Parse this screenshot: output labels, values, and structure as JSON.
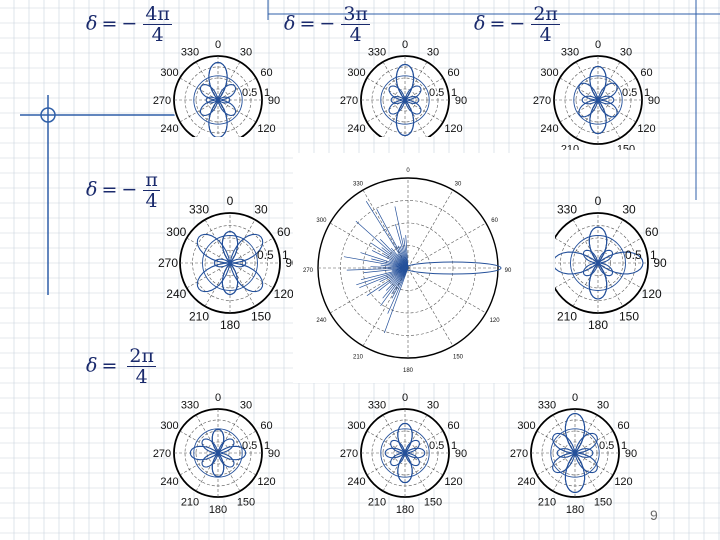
{
  "slide": {
    "page_number": "9",
    "colors": {
      "grid": "#c9d2de",
      "accent": "#2f5fa8",
      "curve": "#24509a",
      "axis": "#000000"
    },
    "row_labels": [
      {
        "delta": "δ",
        "eq": "=",
        "sign": "−",
        "num": "4π",
        "den": "4"
      },
      {
        "delta": "δ",
        "eq": "=",
        "sign": "−",
        "num": "3π",
        "den": "4"
      },
      {
        "delta": "δ",
        "eq": "=",
        "sign": "−",
        "num": "2π",
        "den": "4"
      },
      {
        "delta": "δ",
        "eq": "=",
        "sign": "−",
        "num": "π",
        "den": "4"
      },
      {
        "delta": "δ",
        "eq": "=",
        "sign": "",
        "num": "2π",
        "den": "4"
      }
    ]
  },
  "chart_data": [
    {
      "type": "polar",
      "curve_type": "lobes",
      "angle_ticks": [
        "0",
        "30",
        "60",
        "90",
        "120",
        "150",
        "180",
        "210",
        "240",
        "270",
        "300",
        "330"
      ],
      "radius_ticks": [
        "0.5",
        "1"
      ],
      "rlim": [
        0,
        1
      ],
      "series": [
        {
          "values": [
            0.95,
            0.55,
            0.3,
            0.55,
            0.95
          ]
        }
      ]
    },
    {
      "type": "polar",
      "curve_type": "lobes",
      "angle_ticks": [
        "0",
        "30",
        "60",
        "90",
        "120",
        "150",
        "180",
        "210",
        "240",
        "270",
        "300",
        "330"
      ],
      "radius_ticks": [
        "0.5",
        "1"
      ],
      "rlim": [
        0,
        1
      ],
      "series": [
        {
          "values": [
            0.9,
            0.5,
            0.35,
            0.5,
            0.9
          ]
        }
      ]
    },
    {
      "type": "polar",
      "curve_type": "lobes",
      "angle_ticks": [
        "0",
        "30",
        "60",
        "90",
        "120",
        "150",
        "180",
        "210",
        "240",
        "270",
        "300",
        "330"
      ],
      "radius_ticks": [
        "0.5",
        "1"
      ],
      "rlim": [
        0,
        1
      ],
      "series": [
        {
          "values": [
            0.85,
            0.6,
            0.4,
            0.6,
            0.85
          ]
        }
      ]
    },
    {
      "type": "polar",
      "curve_type": "lobes",
      "angle_ticks": [
        "0",
        "30",
        "60",
        "90",
        "120",
        "150",
        "180",
        "210",
        "240",
        "270",
        "300",
        "330"
      ],
      "radius_ticks": [
        "0.5",
        "1"
      ],
      "rlim": [
        0,
        1
      ],
      "series": [
        {
          "values": [
            0.7,
            0.9,
            0.35,
            0.9,
            0.7
          ]
        }
      ]
    },
    {
      "type": "polar",
      "curve_type": "lobes",
      "angle_ticks": [
        "0",
        "30",
        "60",
        "90",
        "120",
        "150",
        "180",
        "210",
        "240",
        "270",
        "300",
        "330"
      ],
      "radius_ticks": [
        "0.5",
        "1"
      ],
      "rlim": [
        0,
        1
      ],
      "series": [
        {
          "values": [
            0.8,
            0.4,
            1.0,
            0.4,
            0.8
          ]
        }
      ]
    },
    {
      "type": "polar",
      "curve_type": "lobes",
      "angle_ticks": [
        "0",
        "30",
        "60",
        "90",
        "120",
        "150",
        "180",
        "210",
        "240",
        "270",
        "300",
        "330"
      ],
      "radius_ticks": [
        "0.5",
        "1"
      ],
      "rlim": [
        0,
        1
      ],
      "series": [
        {
          "values": [
            0.6,
            0.5,
            0.7,
            0.5,
            0.6
          ]
        }
      ]
    },
    {
      "type": "polar",
      "curve_type": "lobes",
      "angle_ticks": [
        "0",
        "30",
        "60",
        "90",
        "120",
        "150",
        "180",
        "210",
        "240",
        "270",
        "300",
        "330"
      ],
      "radius_ticks": [
        "0.5",
        "1"
      ],
      "rlim": [
        0,
        1
      ],
      "series": [
        {
          "values": [
            0.75,
            0.45,
            0.5,
            0.45,
            0.75
          ]
        }
      ]
    },
    {
      "type": "polar",
      "curve_type": "lobes",
      "angle_ticks": [
        "0",
        "30",
        "60",
        "90",
        "120",
        "150",
        "180",
        "210",
        "240",
        "270",
        "300",
        "330"
      ],
      "radius_ticks": [
        "0.5",
        "1"
      ],
      "rlim": [
        0,
        1
      ],
      "series": [
        {
          "values": [
            1.0,
            0.7,
            0.45,
            0.7,
            1.0
          ]
        }
      ]
    },
    {
      "type": "polar",
      "curve_type": "spikes",
      "angle_ticks": [
        "0",
        "30",
        "60",
        "90",
        "120",
        "150",
        "180",
        "210",
        "240",
        "270",
        "300",
        "330"
      ],
      "radius_ticks": [],
      "rlim": [
        0,
        1
      ],
      "series": [
        {
          "values": [
            0.9,
            0.75,
            0.6,
            0.45
          ]
        }
      ]
    }
  ]
}
